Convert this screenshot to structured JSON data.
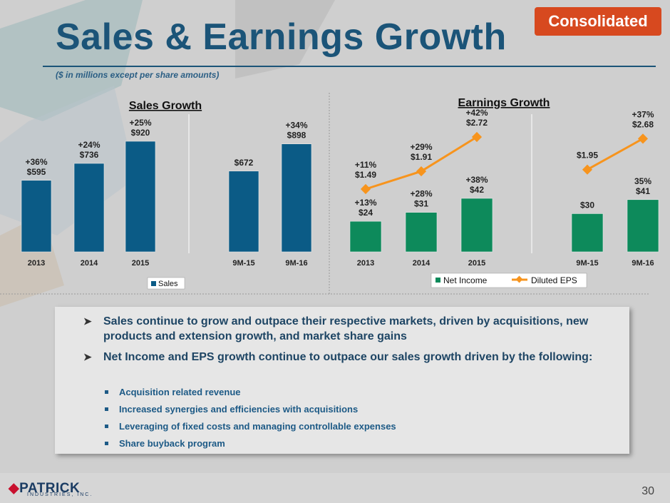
{
  "badge": "Consolidated",
  "title": "Sales & Earnings Growth",
  "subtitle": "($ in millions except per share amounts)",
  "colors": {
    "sales_bar": "#0b5b86",
    "net_income_bar": "#0d8a5b",
    "eps_line": "#f7941d",
    "title": "#1b5478",
    "badge": "#d7491f"
  },
  "chart_data": [
    {
      "type": "bar",
      "title": "Sales Growth",
      "categories": [
        "2013",
        "2014",
        "2015",
        "9M-15",
        "9M-16"
      ],
      "series": [
        {
          "name": "Sales",
          "values": [
            595,
            736,
            920,
            672,
            898
          ]
        }
      ],
      "data_labels": [
        {
          "growth": "+36%",
          "value": "$595"
        },
        {
          "growth": "+24%",
          "value": "$736"
        },
        {
          "growth": "+25%",
          "value": "$920"
        },
        {
          "growth": "",
          "value": "$672"
        },
        {
          "growth": "+34%",
          "value": "$898"
        }
      ],
      "legend": "bottom"
    },
    {
      "type": "bar",
      "title": "Earnings Growth",
      "categories": [
        "2013",
        "2014",
        "2015",
        "9M-15",
        "9M-16"
      ],
      "series": [
        {
          "name": "Net Income",
          "type": "bar",
          "values": [
            24,
            31,
            42,
            30,
            41
          ]
        },
        {
          "name": "Diluted EPS",
          "type": "line",
          "values": [
            1.49,
            1.91,
            2.72,
            1.95,
            2.68
          ]
        }
      ],
      "bar_labels": [
        {
          "growth": "+13%",
          "value": "$24"
        },
        {
          "growth": "+28%",
          "value": "$31"
        },
        {
          "growth": "+38%",
          "value": "$42"
        },
        {
          "growth": "",
          "value": "$30"
        },
        {
          "growth": "35%",
          "value": "$41"
        }
      ],
      "line_labels": [
        {
          "growth": "+11%",
          "value": "$1.49"
        },
        {
          "growth": "+29%",
          "value": "$1.91"
        },
        {
          "growth": "+42%",
          "value": "$2.72"
        },
        {
          "growth": "",
          "value": "$1.95"
        },
        {
          "growth": "+37%",
          "value": "$2.68"
        }
      ],
      "legend": "bottom"
    }
  ],
  "bullets": [
    {
      "text": "Sales continue to grow and outpace their respective markets, driven by acquisitions, new products and extension growth, and market share gains"
    },
    {
      "text": "Net Income and EPS growth continue to outpace our sales growth driven by the following:"
    }
  ],
  "sub_bullets": [
    "Acquisition related revenue",
    "Increased synergies and efficiencies with acquisitions",
    "Leveraging of fixed costs and managing controllable expenses",
    "Share buyback program"
  ],
  "footer": {
    "logo": "PATRICK",
    "logo_sub": "INDUSTRIES, INC.",
    "page": "30"
  }
}
